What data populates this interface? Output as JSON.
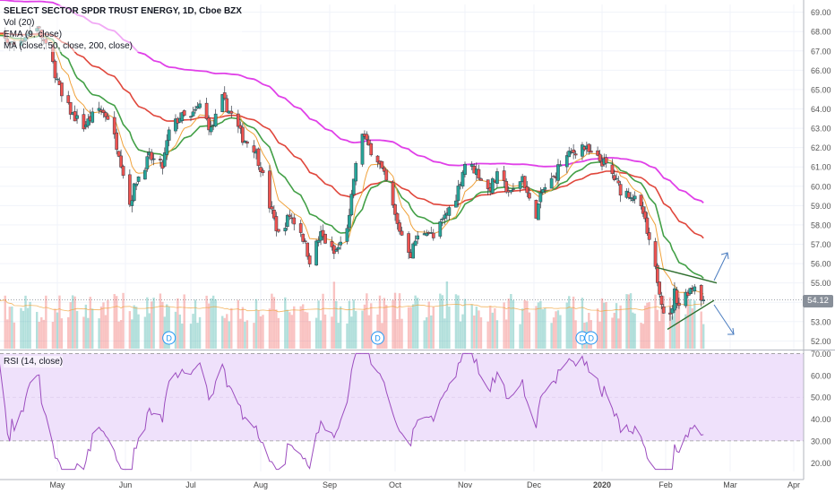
{
  "header": {
    "symbol_line": "SELECT SECTOR SPDR TRUST ENERGY, 1D, Cboe BZX",
    "volume_study": "Vol (20)",
    "ema_study": "EMA (9, close)",
    "ma_study": "MA (close, 50, close, 200, close)"
  },
  "rsi_panel": {
    "label": "RSI (14, close)"
  },
  "last_price": "54.12",
  "colors": {
    "up": "#26a69a",
    "down": "#ef5350",
    "ema9": "#f0a23b",
    "ema20": "#43a047",
    "ma50": "#e0473c",
    "ma200": "#e040e8",
    "rsi": "#9c4dbf",
    "rsi_band": "#efe1fb",
    "trendline": "#2e6e2e",
    "arrow": "#4a7cc0"
  },
  "chart_data": [
    {
      "type": "candlestick",
      "title": "SELECT SECTOR SPDR TRUST ENERGY, 1D, Cboe BZX",
      "x_ticks": [
        "May",
        "Jun",
        "Jul",
        "Aug",
        "Sep",
        "Oct",
        "Nov",
        "Dec",
        "2020",
        "Feb",
        "Mar",
        "Apr"
      ],
      "y_ticks": [
        52.0,
        53.0,
        54.0,
        55.0,
        56.0,
        57.0,
        58.0,
        59.0,
        60.0,
        61.0,
        62.0,
        63.0,
        64.0,
        65.0,
        66.0,
        67.0,
        68.0,
        69.0
      ],
      "ylim": [
        51.6,
        69.4
      ],
      "last_price": 54.12,
      "dividend_markers": [
        "D",
        "D",
        "D",
        "D"
      ],
      "anchors": [
        [
          "2019-04-01",
          68.0
        ],
        [
          "2019-04-12",
          67.3
        ],
        [
          "2019-04-22",
          68.3
        ],
        [
          "2019-04-29",
          66.3
        ],
        [
          "2019-05-03",
          64.6
        ],
        [
          "2019-05-08",
          63.7
        ],
        [
          "2019-05-13",
          63.1
        ],
        [
          "2019-05-20",
          64.0
        ],
        [
          "2019-05-24",
          63.6
        ],
        [
          "2019-05-29",
          61.8
        ],
        [
          "2019-06-03",
          59.1
        ],
        [
          "2019-06-06",
          60.3
        ],
        [
          "2019-06-12",
          61.5
        ],
        [
          "2019-06-18",
          61.0
        ],
        [
          "2019-06-21",
          62.8
        ],
        [
          "2019-06-26",
          63.6
        ],
        [
          "2019-07-01",
          63.5
        ],
        [
          "2019-07-05",
          64.2
        ],
        [
          "2019-07-10",
          62.9
        ],
        [
          "2019-07-15",
          64.5
        ],
        [
          "2019-07-19",
          63.7
        ],
        [
          "2019-07-24",
          62.5
        ],
        [
          "2019-07-29",
          62.0
        ],
        [
          "2019-08-01",
          61.0
        ],
        [
          "2019-08-05",
          59.0
        ],
        [
          "2019-08-09",
          57.5
        ],
        [
          "2019-08-14",
          58.5
        ],
        [
          "2019-08-19",
          57.7
        ],
        [
          "2019-08-23",
          56.2
        ],
        [
          "2019-08-28",
          57.5
        ],
        [
          "2019-09-03",
          56.5
        ],
        [
          "2019-09-06",
          57.0
        ],
        [
          "2019-09-10",
          58.3
        ],
        [
          "2019-09-12",
          60.4
        ],
        [
          "2019-09-16",
          62.8
        ],
        [
          "2019-09-18",
          62.2
        ],
        [
          "2019-09-23",
          61.4
        ],
        [
          "2019-09-27",
          60.2
        ],
        [
          "2019-10-02",
          58.0
        ],
        [
          "2019-10-08",
          56.5
        ],
        [
          "2019-10-10",
          57.2
        ],
        [
          "2019-10-15",
          57.8
        ],
        [
          "2019-10-18",
          57.3
        ],
        [
          "2019-10-23",
          58.4
        ],
        [
          "2019-10-28",
          59.5
        ],
        [
          "2019-11-01",
          61.2
        ],
        [
          "2019-11-06",
          60.8
        ],
        [
          "2019-11-11",
          59.8
        ],
        [
          "2019-11-15",
          60.5
        ],
        [
          "2019-11-21",
          59.6
        ],
        [
          "2019-11-26",
          60.5
        ],
        [
          "2019-11-29",
          59.2
        ],
        [
          "2019-12-02",
          58.6
        ],
        [
          "2019-12-05",
          59.8
        ],
        [
          "2019-12-10",
          60.4
        ],
        [
          "2019-12-13",
          61.2
        ],
        [
          "2019-12-18",
          61.7
        ],
        [
          "2019-12-23",
          62.1
        ],
        [
          "2019-12-27",
          61.6
        ],
        [
          "2020-01-02",
          61.2
        ],
        [
          "2020-01-06",
          60.6
        ],
        [
          "2020-01-10",
          59.8
        ],
        [
          "2020-01-15",
          59.6
        ],
        [
          "2020-01-21",
          58.6
        ],
        [
          "2020-01-24",
          57.0
        ],
        [
          "2020-01-28",
          55.2
        ],
        [
          "2020-01-31",
          53.6
        ],
        [
          "2020-02-03",
          53.2
        ],
        [
          "2020-02-05",
          54.5
        ],
        [
          "2020-02-07",
          53.9
        ],
        [
          "2020-02-11",
          54.6
        ],
        [
          "2020-02-14",
          54.9
        ],
        [
          "2020-02-18",
          54.12
        ]
      ]
    },
    {
      "type": "line",
      "title": "RSI (14, close)",
      "y_ticks": [
        20.0,
        30.0,
        40.0,
        50.0,
        60.0,
        70.0
      ],
      "ylim": [
        16,
        71
      ],
      "band": [
        30,
        70
      ]
    }
  ]
}
